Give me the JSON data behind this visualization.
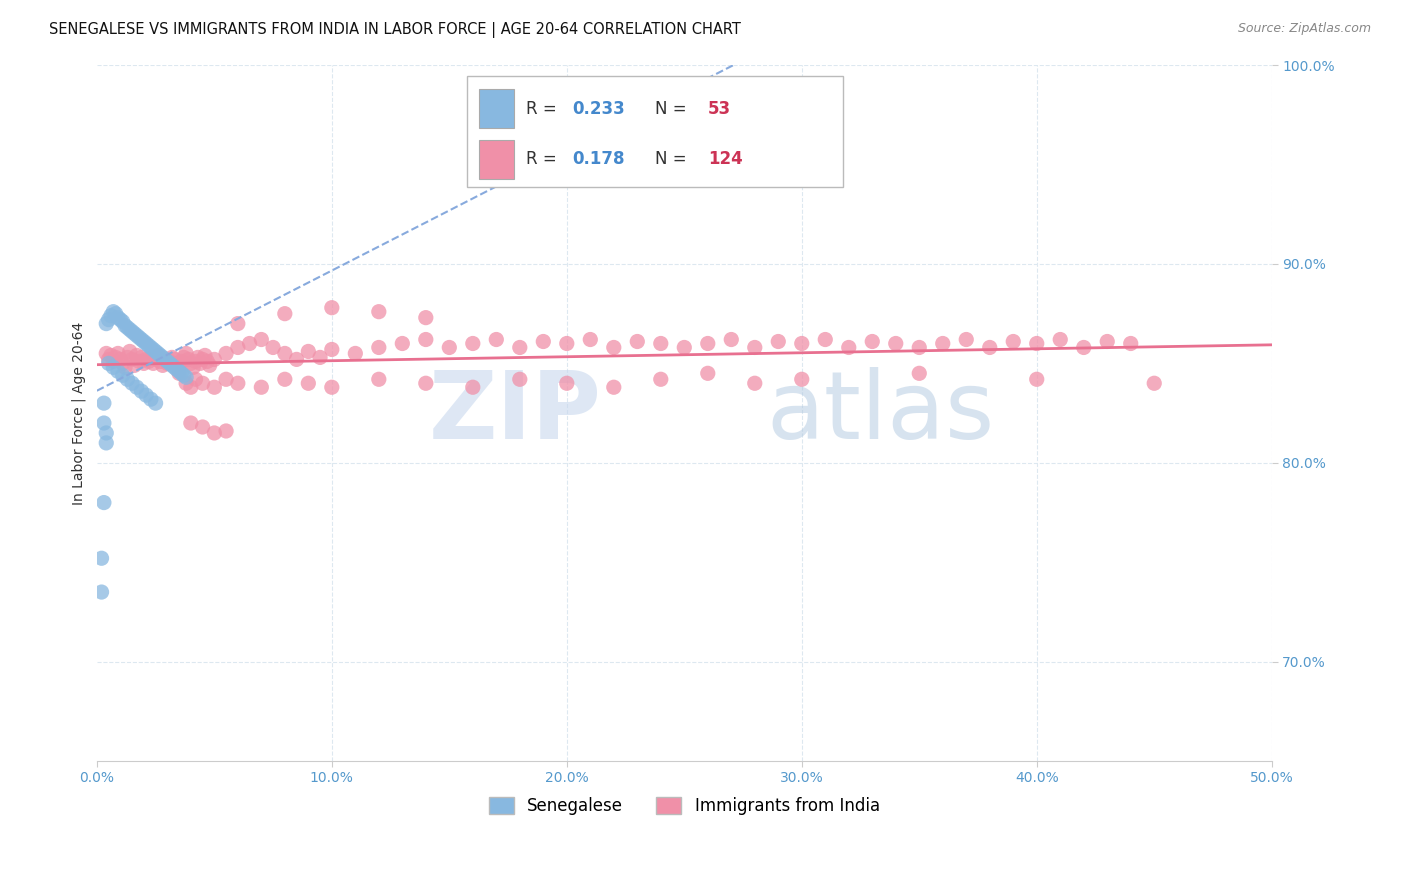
{
  "title": "SENEGALESE VS IMMIGRANTS FROM INDIA IN LABOR FORCE | AGE 20-64 CORRELATION CHART",
  "source": "Source: ZipAtlas.com",
  "ylabel_label": "In Labor Force | Age 20-64",
  "legend_entries": [
    {
      "label": "Senegalese",
      "color": "#a8c8e8"
    },
    {
      "label": "Immigrants from India",
      "color": "#f4a0b8"
    }
  ],
  "r_color": "#4488cc",
  "n_color": "#cc3355",
  "watermark": "ZIPatlas",
  "watermark_zip_color": "#c8d8ec",
  "watermark_atlas_color": "#a8b8d0",
  "senegalese_color": "#88b8e0",
  "india_color": "#f090a8",
  "background_color": "#ffffff",
  "grid_color": "#dde8f0",
  "xlim": [
    0.0,
    0.5
  ],
  "ylim": [
    0.65,
    1.0
  ],
  "ytick_positions": [
    0.7,
    0.8,
    0.9,
    1.0
  ],
  "ytick_labels": [
    "70.0%",
    "80.0%",
    "90.0%",
    "100.0%"
  ],
  "xtick_positions": [
    0.0,
    0.1,
    0.2,
    0.3,
    0.4,
    0.5
  ],
  "xtick_labels": [
    "0.0%",
    "10.0%",
    "20.0%",
    "30.0%",
    "40.0%",
    "50.0%"
  ],
  "senegalese_x": [
    0.004,
    0.005,
    0.006,
    0.007,
    0.008,
    0.009,
    0.01,
    0.011,
    0.012,
    0.013,
    0.014,
    0.015,
    0.016,
    0.017,
    0.018,
    0.019,
    0.02,
    0.021,
    0.022,
    0.023,
    0.024,
    0.025,
    0.026,
    0.027,
    0.028,
    0.029,
    0.03,
    0.031,
    0.032,
    0.033,
    0.034,
    0.035,
    0.036,
    0.037,
    0.038,
    0.005,
    0.007,
    0.009,
    0.011,
    0.013,
    0.015,
    0.017,
    0.019,
    0.021,
    0.023,
    0.025,
    0.003,
    0.003,
    0.004,
    0.004,
    0.002,
    0.002,
    0.003
  ],
  "senegalese_y": [
    0.87,
    0.872,
    0.874,
    0.876,
    0.875,
    0.873,
    0.872,
    0.871,
    0.869,
    0.868,
    0.867,
    0.866,
    0.865,
    0.864,
    0.863,
    0.862,
    0.861,
    0.86,
    0.859,
    0.858,
    0.857,
    0.856,
    0.855,
    0.854,
    0.853,
    0.852,
    0.851,
    0.85,
    0.849,
    0.848,
    0.847,
    0.846,
    0.845,
    0.844,
    0.843,
    0.85,
    0.848,
    0.846,
    0.844,
    0.842,
    0.84,
    0.838,
    0.836,
    0.834,
    0.832,
    0.83,
    0.83,
    0.82,
    0.815,
    0.81,
    0.752,
    0.735,
    0.78
  ],
  "india_x": [
    0.004,
    0.005,
    0.006,
    0.007,
    0.008,
    0.009,
    0.01,
    0.011,
    0.012,
    0.013,
    0.014,
    0.015,
    0.016,
    0.017,
    0.018,
    0.019,
    0.02,
    0.021,
    0.022,
    0.023,
    0.024,
    0.025,
    0.026,
    0.027,
    0.028,
    0.029,
    0.03,
    0.031,
    0.032,
    0.033,
    0.034,
    0.035,
    0.036,
    0.037,
    0.038,
    0.039,
    0.04,
    0.041,
    0.042,
    0.043,
    0.044,
    0.045,
    0.046,
    0.047,
    0.048,
    0.05,
    0.055,
    0.06,
    0.065,
    0.07,
    0.075,
    0.08,
    0.085,
    0.09,
    0.095,
    0.1,
    0.11,
    0.12,
    0.13,
    0.14,
    0.15,
    0.16,
    0.17,
    0.18,
    0.19,
    0.2,
    0.21,
    0.22,
    0.23,
    0.24,
    0.25,
    0.26,
    0.27,
    0.28,
    0.29,
    0.3,
    0.31,
    0.32,
    0.33,
    0.34,
    0.35,
    0.36,
    0.37,
    0.38,
    0.39,
    0.4,
    0.41,
    0.42,
    0.43,
    0.44,
    0.035,
    0.038,
    0.04,
    0.042,
    0.045,
    0.05,
    0.055,
    0.06,
    0.07,
    0.08,
    0.09,
    0.1,
    0.12,
    0.14,
    0.16,
    0.18,
    0.2,
    0.22,
    0.24,
    0.26,
    0.28,
    0.3,
    0.35,
    0.4,
    0.45,
    0.06,
    0.08,
    0.1,
    0.12,
    0.14,
    0.04,
    0.045,
    0.05,
    0.055
  ],
  "india_y": [
    0.855,
    0.852,
    0.854,
    0.851,
    0.853,
    0.855,
    0.852,
    0.85,
    0.848,
    0.853,
    0.856,
    0.852,
    0.849,
    0.854,
    0.851,
    0.853,
    0.85,
    0.852,
    0.851,
    0.853,
    0.85,
    0.852,
    0.854,
    0.851,
    0.849,
    0.852,
    0.85,
    0.851,
    0.853,
    0.852,
    0.85,
    0.849,
    0.851,
    0.853,
    0.855,
    0.852,
    0.85,
    0.848,
    0.851,
    0.853,
    0.85,
    0.852,
    0.854,
    0.851,
    0.849,
    0.852,
    0.855,
    0.858,
    0.86,
    0.862,
    0.858,
    0.855,
    0.852,
    0.856,
    0.853,
    0.857,
    0.855,
    0.858,
    0.86,
    0.862,
    0.858,
    0.86,
    0.862,
    0.858,
    0.861,
    0.86,
    0.862,
    0.858,
    0.861,
    0.86,
    0.858,
    0.86,
    0.862,
    0.858,
    0.861,
    0.86,
    0.862,
    0.858,
    0.861,
    0.86,
    0.858,
    0.86,
    0.862,
    0.858,
    0.861,
    0.86,
    0.862,
    0.858,
    0.861,
    0.86,
    0.845,
    0.84,
    0.838,
    0.842,
    0.84,
    0.838,
    0.842,
    0.84,
    0.838,
    0.842,
    0.84,
    0.838,
    0.842,
    0.84,
    0.838,
    0.842,
    0.84,
    0.838,
    0.842,
    0.845,
    0.84,
    0.842,
    0.845,
    0.842,
    0.84,
    0.87,
    0.875,
    0.878,
    0.876,
    0.873,
    0.82,
    0.818,
    0.815,
    0.816
  ],
  "title_fontsize": 10.5,
  "tick_fontsize": 10,
  "legend_fontsize": 12
}
